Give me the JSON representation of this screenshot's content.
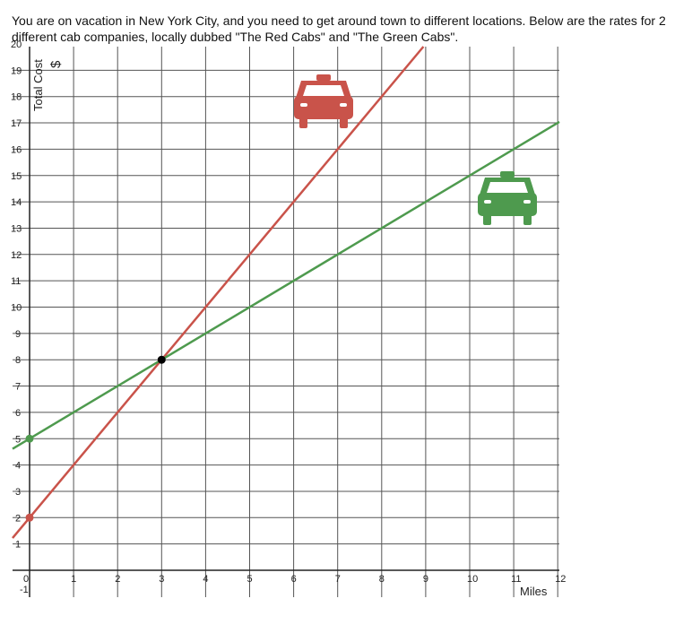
{
  "intro_text": "You are on vacation in New York City, and you need to get around town to different locations.  Below are the rates for 2 different cab companies, locally dubbed \"The Red Cabs\" and \"The Green Cabs\".",
  "chart_data": {
    "type": "line",
    "title": "",
    "xlabel": "Miles",
    "ylabel": "Total Cost",
    "ylabel_unit": "$",
    "xlim": [
      0,
      12
    ],
    "ylim": [
      0,
      20
    ],
    "x_ticks": [
      "0",
      "1",
      "2",
      "3",
      "4",
      "5",
      "6",
      "7",
      "8",
      "9",
      "10",
      "11",
      "12"
    ],
    "x_tick_extra": "-1",
    "y_ticks": [
      "1",
      "2",
      "3",
      "4",
      "5",
      "6",
      "7",
      "8",
      "9",
      "10",
      "11",
      "12",
      "13",
      "14",
      "15",
      "16",
      "17",
      "18",
      "19",
      "20"
    ],
    "grid": true,
    "series": [
      {
        "color": "#c9534a",
        "intercept": 2,
        "slope": 2,
        "x": [
          0,
          1,
          2,
          3,
          4,
          5,
          6,
          7,
          8,
          9
        ],
        "y": [
          2,
          4,
          6,
          8,
          10,
          12,
          14,
          16,
          18,
          20
        ]
      },
      {
        "color": "#4e9a4e",
        "intercept": 5,
        "slope": 1,
        "x": [
          0,
          1,
          2,
          3,
          4,
          5,
          6,
          7,
          8,
          9,
          10,
          11,
          12
        ],
        "y": [
          5,
          6,
          7,
          8,
          9,
          10,
          11,
          12,
          13,
          14,
          15,
          16,
          17
        ]
      }
    ],
    "points": [
      {
        "x": 3,
        "y": 8,
        "color": "#000000"
      },
      {
        "x": 0,
        "y": 2,
        "color": "#c9534a"
      },
      {
        "x": 0,
        "y": 5,
        "color": "#4e9a4e"
      }
    ],
    "icons": [
      {
        "name": "red-cab-icon",
        "color": "#c9534a"
      },
      {
        "name": "green-cab-icon",
        "color": "#4e9a4e"
      }
    ]
  }
}
